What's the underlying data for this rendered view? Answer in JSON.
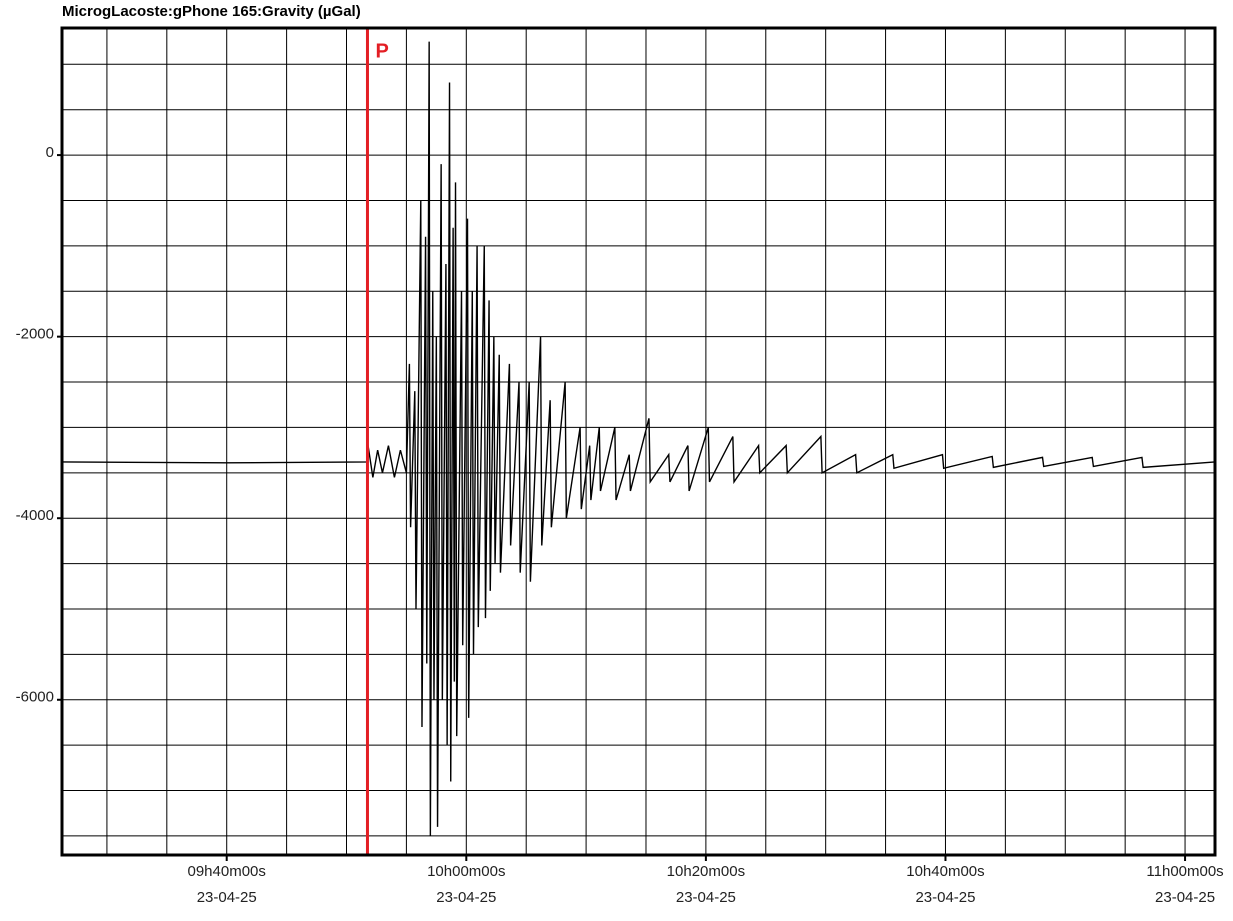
{
  "chart_data": {
    "type": "line",
    "title": "MicrogLacoste:gPhone 165:Gravity (µGal)",
    "annotation": {
      "label": "P",
      "x": 591.75,
      "color": "#e31e24"
    },
    "xlim": [
      566.25,
      662.5
    ],
    "ylim": [
      -7710,
      1400
    ],
    "xticks": [
      {
        "value": 580,
        "label": "09h40m00s"
      },
      {
        "value": 600,
        "label": "10h00m00s"
      },
      {
        "value": 620,
        "label": "10h20m00s"
      },
      {
        "value": 640,
        "label": "10h40m00s"
      },
      {
        "value": 660,
        "label": "11h00m00s"
      }
    ],
    "xtick_dates": [
      "23-04-25",
      "23-04-25",
      "23-04-25",
      "23-04-25",
      "23-04-25"
    ],
    "yticks": [
      0,
      -2000,
      -4000,
      -6000
    ],
    "xgrid": [
      570,
      575,
      580,
      585,
      590,
      595,
      600,
      605,
      610,
      615,
      620,
      625,
      630,
      635,
      640,
      645,
      650,
      655,
      660
    ],
    "ygrid": [
      1000,
      500,
      0,
      -500,
      -1000,
      -1500,
      -2000,
      -2500,
      -3000,
      -3500,
      -4000,
      -4500,
      -5000,
      -5500,
      -6000,
      -6500,
      -7000,
      -7500
    ],
    "grid": true,
    "series": [
      {
        "color": "#000000",
        "x": [
          566.25,
          580,
          591.75,
          591.8,
          592.2,
          592.6,
          593,
          593.5,
          594,
          594.5,
          595,
          595.25,
          595.35,
          595.7,
          595.8,
          596.2,
          596.3,
          596.6,
          596.7,
          596.9,
          597.0,
          597.2,
          597.3,
          597.5,
          597.6,
          597.9,
          598.0,
          598.3,
          598.4,
          598.6,
          598.7,
          598.9,
          599.0,
          599.1,
          599.2,
          599.6,
          599.7,
          600.1,
          600.2,
          600.5,
          600.6,
          600.9,
          601.0,
          601.5,
          601.6,
          601.9,
          602.0,
          602.3,
          602.4,
          602.75,
          602.85,
          603.6,
          603.7,
          604.4,
          604.5,
          605.25,
          605.35,
          606.2,
          606.3,
          607,
          607.1,
          608.25,
          608.35,
          609.5,
          609.6,
          610.3,
          610.4,
          611.1,
          611.2,
          612.4,
          612.5,
          613.6,
          613.7,
          615.25,
          615.35,
          616.9,
          617.0,
          618.5,
          618.6,
          620.2,
          620.3,
          622.25,
          622.35,
          624.4,
          624.5,
          626.7,
          626.8,
          629.6,
          629.7,
          632.5,
          632.6,
          635.6,
          635.7,
          639.75,
          639.85,
          643.9,
          644.0,
          648.1,
          648.2,
          652.25,
          652.35,
          656.4,
          656.5,
          662.5
        ],
        "values": [
          -3380,
          -3390,
          -3380,
          -3200,
          -3550,
          -3250,
          -3500,
          -3200,
          -3550,
          -3250,
          -3500,
          -2300,
          -4100,
          -2600,
          -5000,
          -500,
          -6300,
          -900,
          -5600,
          1250,
          -7500,
          -1500,
          -6000,
          -2000,
          -7400,
          -100,
          -6000,
          -1200,
          -6500,
          800,
          -6900,
          -800,
          -5800,
          -300,
          -6400,
          -1500,
          -5400,
          -700,
          -6200,
          -1500,
          -5500,
          -1000,
          -5200,
          -1000,
          -5100,
          -1600,
          -4800,
          -2000,
          -4500,
          -2200,
          -4600,
          -2300,
          -4300,
          -2500,
          -4600,
          -2500,
          -4700,
          -2000,
          -4300,
          -2700,
          -4100,
          -2500,
          -4000,
          -3000,
          -3900,
          -3200,
          -3800,
          -3000,
          -3700,
          -3000,
          -3800,
          -3300,
          -3700,
          -2900,
          -3600,
          -3300,
          -3600,
          -3200,
          -3700,
          -3000,
          -3600,
          -3100,
          -3600,
          -3200,
          -3500,
          -3200,
          -3500,
          -3100,
          -3500,
          -3300,
          -3500,
          -3300,
          -3450,
          -3300,
          -3450,
          -3320,
          -3440,
          -3330,
          -3430,
          -3330,
          -3430,
          -3330,
          -3440,
          -3380
        ]
      }
    ]
  }
}
